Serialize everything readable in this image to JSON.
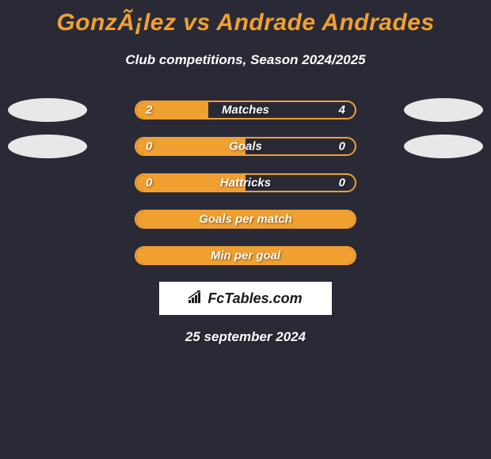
{
  "header": {
    "title": "GonzÃ¡lez vs Andrade Andrades",
    "subtitle": "Club competitions, Season 2024/2025",
    "title_color": "#f0a030",
    "subtitle_color": "#ffffff"
  },
  "stats": [
    {
      "label": "Matches",
      "left_value": "2",
      "right_value": "4",
      "left_pct": 33,
      "show_ellipses": true
    },
    {
      "label": "Goals",
      "left_value": "0",
      "right_value": "0",
      "left_pct": 50,
      "show_ellipses": true
    },
    {
      "label": "Hattricks",
      "left_value": "0",
      "right_value": "0",
      "left_pct": 50,
      "show_ellipses": false
    },
    {
      "label": "Goals per match",
      "left_value": "",
      "right_value": "",
      "left_pct": 100,
      "show_ellipses": false
    },
    {
      "label": "Min per goal",
      "left_value": "",
      "right_value": "",
      "left_pct": 100,
      "show_ellipses": false
    }
  ],
  "footer": {
    "logo_text": "FcTables.com",
    "date": "25 september 2024"
  },
  "colors": {
    "background": "#2a2a36",
    "accent": "#f0a030",
    "text_light": "#ffffff",
    "ellipse_bg": "#e8e8e8"
  }
}
